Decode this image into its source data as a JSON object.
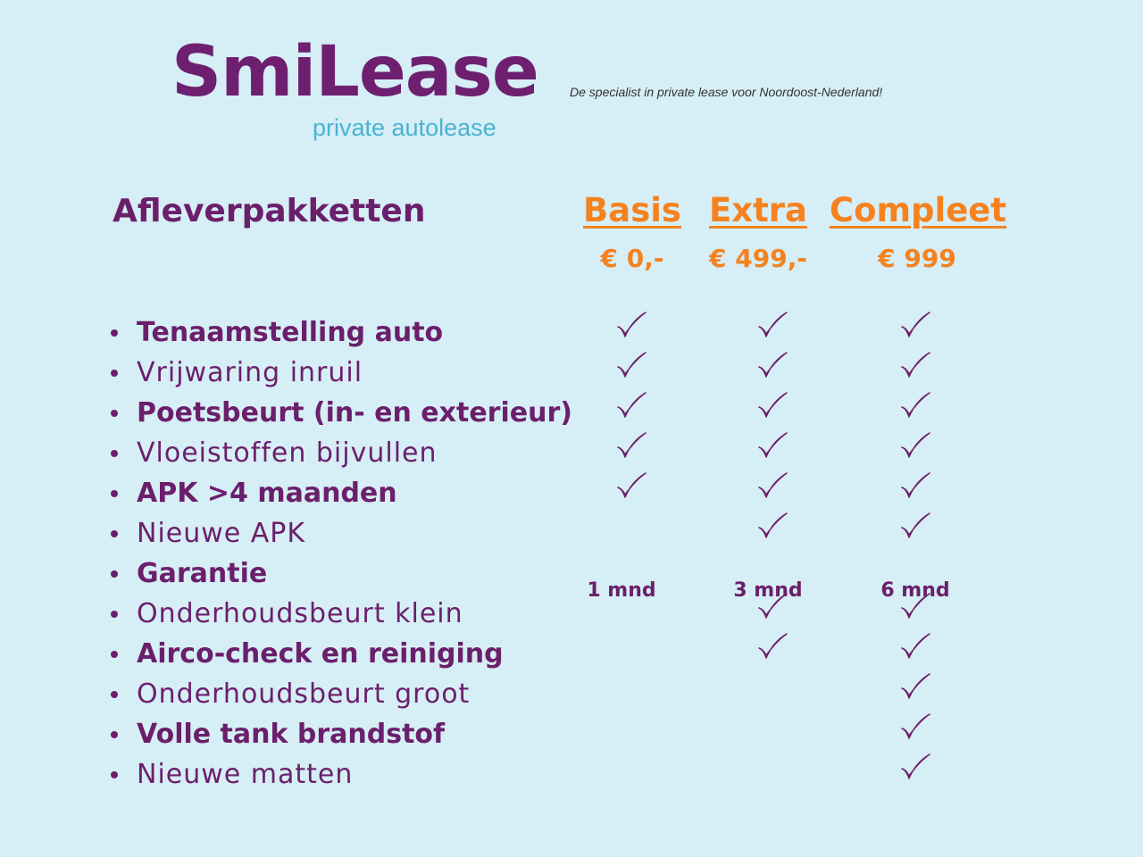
{
  "header": {
    "logo_text": "SmiLease",
    "logo_subtitle": "private autolease",
    "tagline": "De specialist in private lease voor Noordoost-Nederland!"
  },
  "colors": {
    "background": "#d6eef5",
    "purple": "#6b1f6b",
    "orange": "#f5821f",
    "teal": "#4ab3d4"
  },
  "section_title": "Afleverpakketten",
  "packages": [
    {
      "name": "Basis",
      "price": "€ 0,-"
    },
    {
      "name": "Extra",
      "price": "€ 499,-"
    },
    {
      "name": "Compleet",
      "price": "€ 999"
    }
  ],
  "features": [
    {
      "label": "Tenaamstelling auto",
      "bold": true,
      "values": [
        true,
        true,
        true
      ]
    },
    {
      "label": "Vrijwaring inruil",
      "bold": false,
      "values": [
        true,
        true,
        true
      ]
    },
    {
      "label": "Poetsbeurt (in- en exterieur)",
      "bold": true,
      "values": [
        true,
        true,
        true
      ]
    },
    {
      "label": "Vloeistoffen bijvullen",
      "bold": false,
      "values": [
        true,
        true,
        true
      ]
    },
    {
      "label": "APK >4 maanden",
      "bold": true,
      "values": [
        true,
        true,
        true
      ]
    },
    {
      "label": "Nieuwe APK",
      "bold": false,
      "values": [
        false,
        true,
        true
      ]
    },
    {
      "label": "Garantie",
      "bold": true,
      "values": [
        "1 mnd",
        "3 mnd",
        "6 mnd"
      ]
    },
    {
      "label": "Onderhoudsbeurt klein",
      "bold": false,
      "values": [
        false,
        true,
        true
      ]
    },
    {
      "label": "Airco-check en reiniging",
      "bold": true,
      "values": [
        false,
        true,
        true
      ]
    },
    {
      "label": "Onderhoudsbeurt groot",
      "bold": false,
      "values": [
        false,
        false,
        true
      ]
    },
    {
      "label": "Volle tank brandstof",
      "bold": true,
      "values": [
        false,
        false,
        true
      ]
    },
    {
      "label": "Nieuwe matten",
      "bold": false,
      "values": [
        false,
        false,
        true
      ]
    }
  ],
  "icons": {
    "included": "check-icon",
    "bullet": "bullet-icon"
  }
}
